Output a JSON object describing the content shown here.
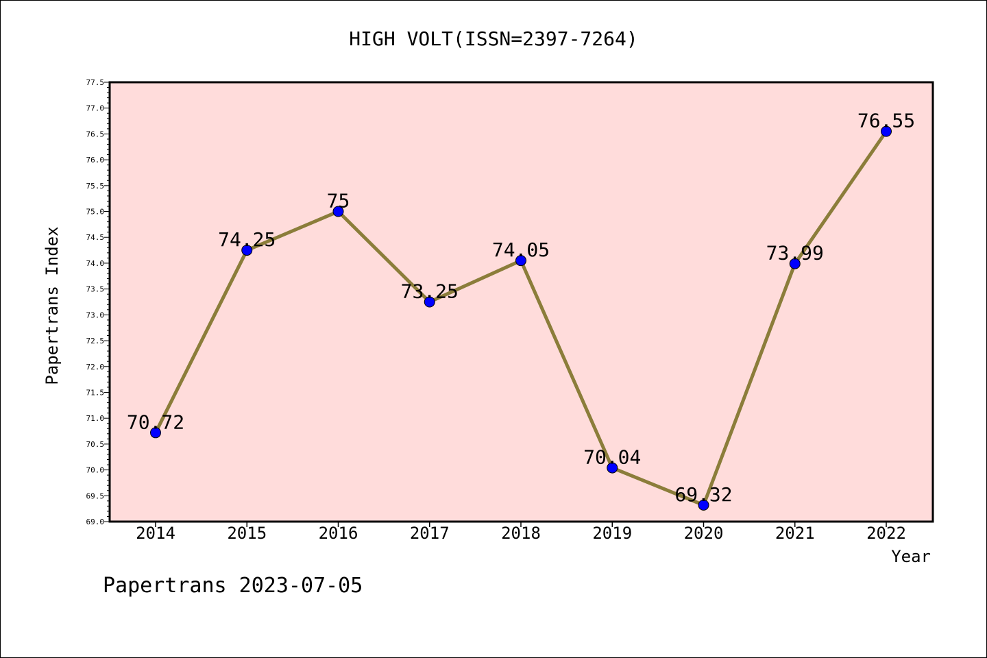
{
  "chart_data": {
    "type": "line",
    "title": "HIGH VOLT(ISSN=2397-7264)",
    "xlabel": "Year",
    "ylabel": "Papertrans Index",
    "footer": "Papertrans 2023-07-05",
    "categories": [
      "2014",
      "2015",
      "2016",
      "2017",
      "2018",
      "2019",
      "2020",
      "2021",
      "2022"
    ],
    "values": [
      70.72,
      74.25,
      75,
      73.25,
      74.05,
      70.04,
      69.32,
      73.99,
      76.55
    ],
    "data_labels": [
      "70.72",
      "74.25",
      "75",
      "73.25",
      "74.05",
      "70.04",
      "69.32",
      "73.99",
      "76.55"
    ],
    "ylim": [
      69.0,
      77.5
    ],
    "yticks": [
      "69.0",
      "69.5",
      "70.0",
      "70.5",
      "71.0",
      "71.5",
      "72.0",
      "72.5",
      "73.0",
      "73.5",
      "74.0",
      "74.5",
      "75.0",
      "75.5",
      "76.0",
      "76.5",
      "77.0",
      "77.5"
    ],
    "grid": false,
    "legend": "none",
    "colors": {
      "plot_background": "#ffdcdb",
      "line": "#8b7d3a",
      "marker": "#0000ff"
    }
  }
}
